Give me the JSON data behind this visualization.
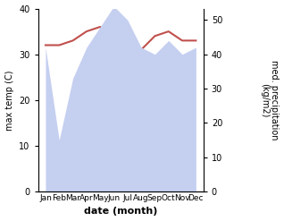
{
  "months": [
    "Jan",
    "Feb",
    "Mar",
    "Apr",
    "May",
    "Jun",
    "Jul",
    "Aug",
    "Sep",
    "Oct",
    "Nov",
    "Dec"
  ],
  "temp_max": [
    32,
    32,
    33,
    35,
    36,
    34,
    31,
    31,
    34,
    35,
    33,
    33
  ],
  "precipitation": [
    42,
    15,
    33,
    42,
    48,
    54,
    50,
    42,
    40,
    44,
    40,
    42
  ],
  "temp_color": "#c0504d",
  "precip_fill_color": "#c5cff0",
  "left_ylabel": "max temp (C)",
  "right_ylabel": "med. precipitation\n(kg/m2)",
  "xlabel": "date (month)",
  "ylim_left": [
    0,
    40
  ],
  "ylim_right": [
    0,
    53.33
  ],
  "right_yticks": [
    0,
    10,
    20,
    30,
    40,
    50
  ],
  "left_yticks": [
    0,
    10,
    20,
    30,
    40
  ],
  "background_color": "#ffffff"
}
